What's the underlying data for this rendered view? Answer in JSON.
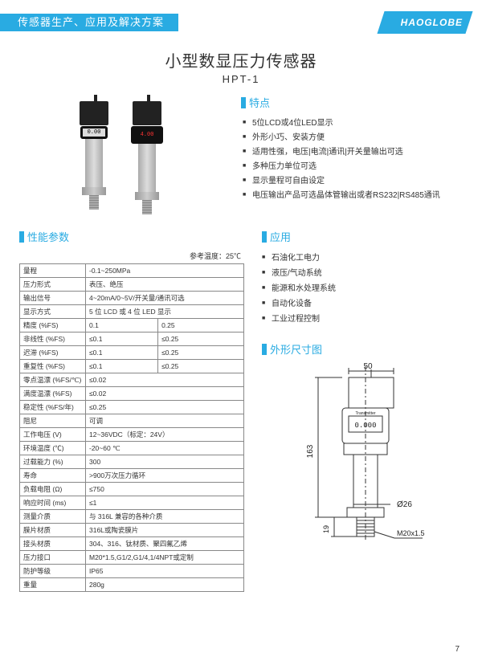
{
  "header": {
    "tagline": "传感器生产、应用及解决方案",
    "logo": "HAOGLOBE"
  },
  "title": {
    "main": "小型数显压力传感器",
    "model": "HPT-1"
  },
  "sections": {
    "features": "特点",
    "specs": "性能参数",
    "applications": "应用",
    "dimensions": "外形尺寸图"
  },
  "product_displays": {
    "lcd_value": "0.00",
    "led_value": "4.00"
  },
  "features": [
    "5位LCD或4位LED显示",
    "外形小巧、安装方便",
    "适用性强，电压|电流|通讯|开关量输出可选",
    "多种压力单位可选",
    "显示量程可自由设定",
    "电压输出产品可选晶体管输出或者RS232|RS485通讯"
  ],
  "ref_temp": "参考温度：25℃",
  "spec_table": [
    {
      "label": "量程",
      "cols": [
        "-0.1~250MPa"
      ]
    },
    {
      "label": "压力形式",
      "cols": [
        "表压、绝压"
      ]
    },
    {
      "label": "输出信号",
      "cols": [
        "4~20mA/0~5V/开关量/通讯可选"
      ]
    },
    {
      "label": "显示方式",
      "cols": [
        "5 位 LCD 或 4 位 LED 显示"
      ]
    },
    {
      "label": "精度 (%FS)",
      "cols": [
        "0.1",
        "0.25"
      ]
    },
    {
      "label": "非线性 (%FS)",
      "cols": [
        "≤0.1",
        "≤0.25"
      ]
    },
    {
      "label": "迟滞 (%FS)",
      "cols": [
        "≤0.1",
        "≤0.25"
      ]
    },
    {
      "label": "重复性 (%FS)",
      "cols": [
        "≤0.1",
        "≤0.25"
      ]
    },
    {
      "label": "零点温漂 (%FS/℃)",
      "cols": [
        "≤0.02"
      ]
    },
    {
      "label": "满度温漂 (%FS)",
      "cols": [
        "≤0.02"
      ]
    },
    {
      "label": "稳定性 (%FS/年)",
      "cols": [
        "≤0.25"
      ]
    },
    {
      "label": "阻尼",
      "cols": [
        "可调"
      ]
    },
    {
      "label": "工作电压 (V)",
      "cols": [
        "12~36VDC（标定：24V）"
      ]
    },
    {
      "label": "环境温度 (℃)",
      "cols": [
        "-20~60 ℃"
      ]
    },
    {
      "label": "过载能力 (%)",
      "cols": [
        "300"
      ]
    },
    {
      "label": "寿命",
      "cols": [
        ">900万次压力循环"
      ]
    },
    {
      "label": "负载电阻 (Ω)",
      "cols": [
        "≤750"
      ]
    },
    {
      "label": "响应时间 (ms)",
      "cols": [
        "≤1"
      ]
    },
    {
      "label": "测量介质",
      "cols": [
        "与 316L 兼容的各种介质"
      ]
    },
    {
      "label": "膜片材质",
      "cols": [
        "316L或陶瓷膜片"
      ]
    },
    {
      "label": "接头材质",
      "cols": [
        "304、316、钛材质、聚四氟乙烯"
      ]
    },
    {
      "label": "压力接口",
      "cols": [
        "M20*1.5,G1/2,G1/4,1/4NPT或定制"
      ]
    },
    {
      "label": "防护等级",
      "cols": [
        "IP65"
      ]
    },
    {
      "label": "重量",
      "cols": [
        "280g"
      ]
    }
  ],
  "applications": [
    "石油化工电力",
    "液压/气动系统",
    "能源和水处理系统",
    "自动化设备",
    "工业过程控制"
  ],
  "dimensions": {
    "width_top": "50",
    "height_total": "163",
    "diameter": "Ø26",
    "thread_height": "19",
    "thread_spec": "M20x1.5",
    "display_text": "Transmitter",
    "display_value": "0.000"
  },
  "dim_colors": {
    "line": "#333333",
    "fill_body": "#ffffff",
    "text": "#222222"
  },
  "page_number": "7"
}
